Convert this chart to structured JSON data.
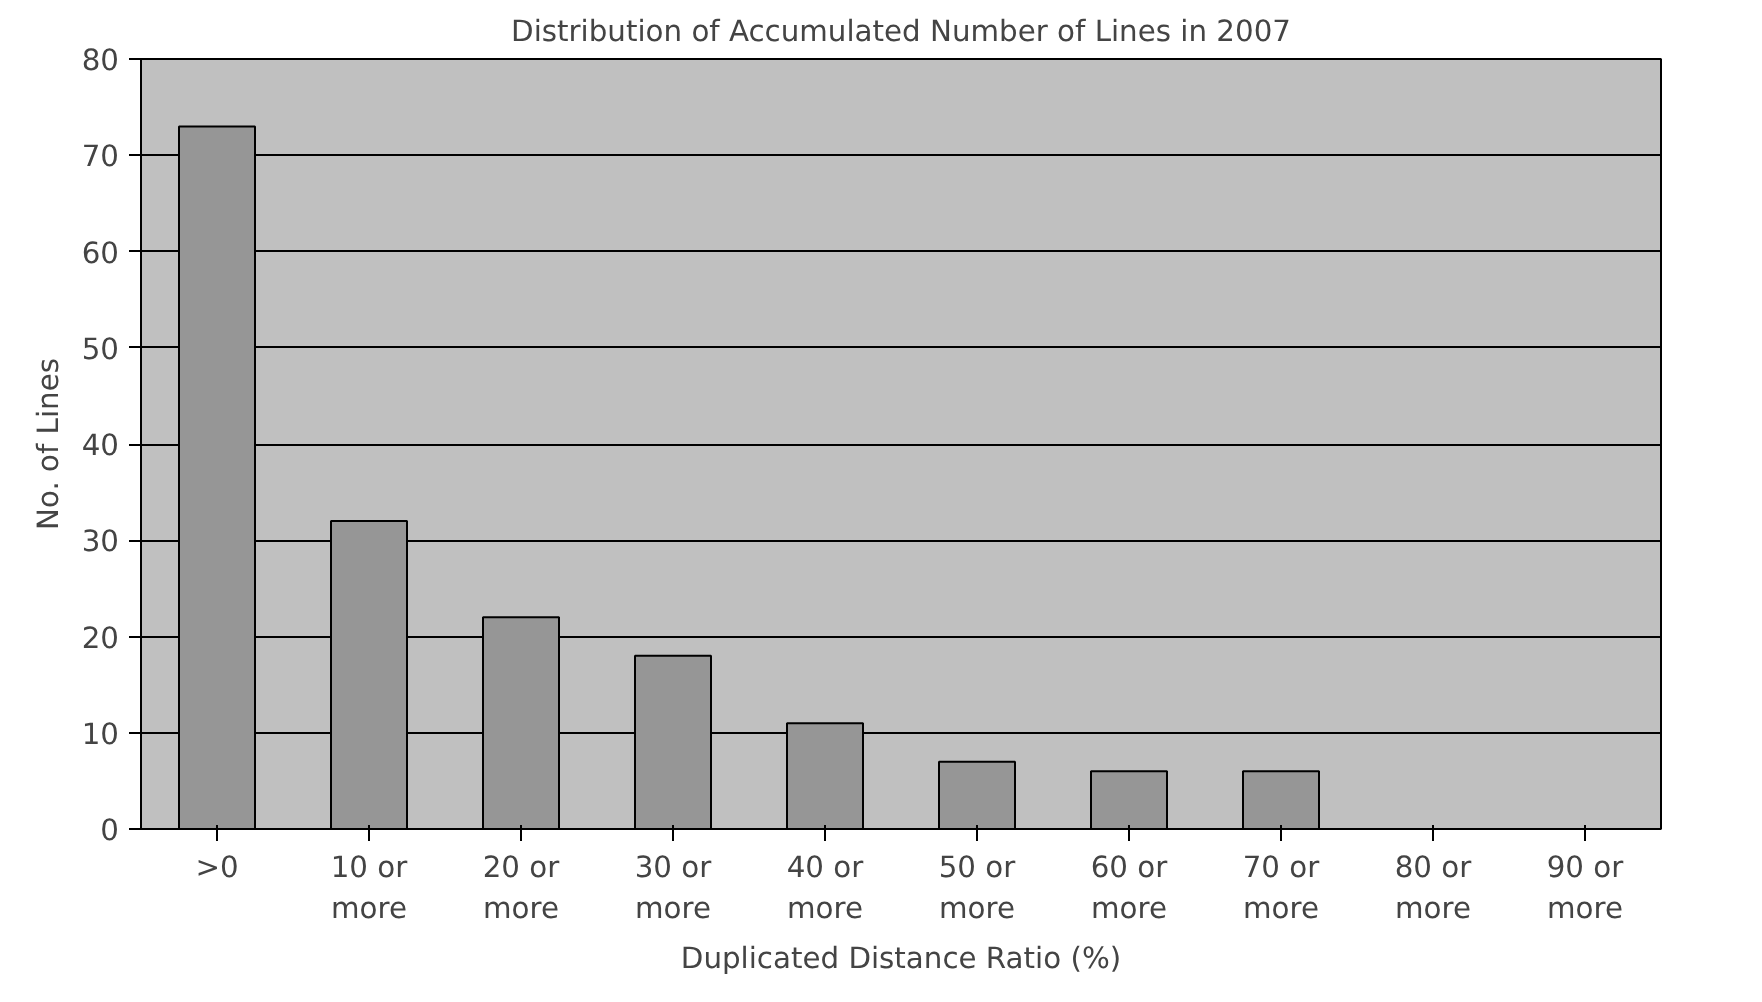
{
  "chart_data": {
    "type": "bar",
    "title": "Distribution of Accumulated Number of Lines in 2007",
    "xlabel": "Duplicated Distance Ratio (%)",
    "ylabel": "No. of Lines",
    "categories": [
      ">0",
      "10 or more",
      "20 or more",
      "30 or more",
      "40 or more",
      "50 or more",
      "60 or more",
      "70 or more",
      "80 or more",
      "90 or more"
    ],
    "values": [
      73,
      32,
      22,
      18,
      11,
      7,
      6,
      6,
      0,
      0
    ],
    "color": "#969696",
    "ylim": [
      0,
      80
    ],
    "yticks": [
      0,
      10,
      20,
      30,
      40,
      50,
      60,
      70,
      80
    ],
    "grid": "y"
  }
}
